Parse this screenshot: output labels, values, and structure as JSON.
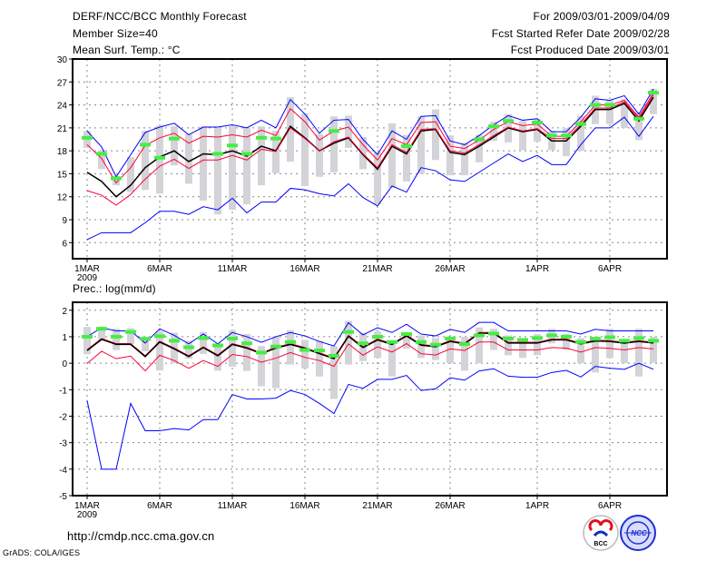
{
  "header": {
    "title": "DERF/NCC/BCC Monthly Forecast",
    "member_size": "Member Size=40",
    "period": "For 2009/03/01-2009/04/09",
    "start_date": "Fcst Started Refer Date 2009/02/28",
    "produced_date": "Fcst Produced Date 2009/03/01"
  },
  "footer": {
    "url": "http://cmdp.ncc.cma.gov.cn",
    "grads": "GrADS: COLA/IGES",
    "logo_bcc": "BCC",
    "logo_ncc": "NCC"
  },
  "colors": {
    "max_min": "#0000ff",
    "spread": "#ff0033",
    "mean": "#000000",
    "bars": "#d3d3d8",
    "obs": "#44ee44"
  },
  "chart_data": [
    {
      "type": "line",
      "title": "Mean Surf. Temp.: °C",
      "ylabel": "°C",
      "ylim": [
        3.9,
        30
      ],
      "yticks": [
        6,
        9,
        12,
        15,
        18,
        21,
        24,
        27,
        30
      ],
      "x_days": 40,
      "xticks": [
        {
          "day": 1,
          "label": "1MAR",
          "sub": "2009"
        },
        {
          "day": 6,
          "label": "6MAR"
        },
        {
          "day": 11,
          "label": "11MAR"
        },
        {
          "day": 16,
          "label": "16MAR"
        },
        {
          "day": 21,
          "label": "21MAR"
        },
        {
          "day": 26,
          "label": "26MAR"
        },
        {
          "day": 32,
          "label": "1APR"
        },
        {
          "day": 37,
          "label": "6APR"
        }
      ],
      "grid": true,
      "series": [
        {
          "name": "max",
          "color": "#0000ff",
          "values": [
            20.6,
            18.5,
            14.6,
            17.5,
            20.4,
            21.1,
            21.6,
            20.1,
            21.1,
            21.1,
            21.4,
            21.0,
            22.0,
            21.0,
            24.7,
            22.8,
            20.3,
            22.0,
            22.1,
            19.5,
            17.5,
            20.6,
            19.5,
            22.5,
            22.6,
            19.3,
            18.8,
            20.0,
            21.4,
            22.6,
            22.0,
            22.2,
            20.5,
            20.5,
            22.4,
            24.8,
            24.6,
            25.2,
            22.8,
            26.1
          ]
        },
        {
          "name": "mean_plus_sd",
          "color": "#ff0033",
          "values": [
            18.8,
            17.0,
            13.8,
            15.8,
            18.7,
            19.7,
            20.3,
            19.0,
            19.9,
            19.8,
            20.1,
            19.8,
            20.7,
            20.0,
            23.5,
            21.8,
            19.4,
            20.6,
            21.1,
            18.8,
            16.8,
            19.6,
            18.8,
            21.7,
            21.8,
            18.6,
            18.3,
            19.4,
            20.8,
            21.8,
            21.3,
            21.5,
            19.9,
            19.9,
            21.8,
            24.0,
            24.0,
            24.6,
            22.4,
            25.6
          ]
        },
        {
          "name": "mean",
          "color": "#000000",
          "values": [
            15.2,
            14.0,
            12.0,
            13.5,
            15.8,
            17.2,
            18.0,
            16.6,
            17.6,
            17.5,
            18.0,
            17.3,
            18.6,
            18.0,
            21.2,
            19.7,
            18.0,
            19.0,
            19.7,
            17.5,
            15.6,
            18.6,
            17.6,
            20.6,
            20.8,
            17.8,
            17.5,
            18.6,
            19.8,
            21.0,
            20.5,
            20.8,
            19.3,
            19.3,
            21.2,
            23.4,
            23.4,
            24.2,
            21.9,
            25.0
          ]
        },
        {
          "name": "mean_minus_sd",
          "color": "#ff0033",
          "values": [
            12.8,
            12.2,
            10.9,
            12.3,
            14.3,
            16.0,
            16.9,
            15.7,
            16.8,
            16.8,
            17.4,
            16.8,
            18.2,
            17.9,
            21.0,
            19.6,
            18.0,
            19.2,
            19.8,
            17.6,
            15.8,
            18.8,
            17.8,
            20.8,
            20.9,
            18.0,
            17.7,
            18.8,
            20.0,
            21.1,
            20.6,
            20.9,
            19.6,
            19.6,
            21.4,
            23.6,
            23.6,
            24.4,
            22.2,
            25.3
          ]
        },
        {
          "name": "min",
          "color": "#0000ff",
          "values": [
            6.4,
            7.3,
            7.3,
            7.3,
            8.6,
            10.1,
            10.1,
            9.7,
            10.7,
            10.3,
            11.8,
            9.9,
            11.3,
            11.3,
            13.1,
            12.9,
            12.4,
            12.1,
            13.7,
            11.9,
            10.8,
            13.4,
            12.6,
            15.8,
            15.4,
            14.2,
            14.0,
            15.2,
            16.4,
            17.6,
            16.6,
            17.4,
            16.2,
            16.2,
            18.8,
            21.0,
            21.0,
            22.4,
            19.9,
            22.5
          ]
        }
      ],
      "bars": [
        [
          18.4,
          20.6
        ],
        [
          15.6,
          18.1
        ],
        [
          13.5,
          14.7
        ],
        [
          12.6,
          17.2
        ],
        [
          12.9,
          20.6
        ],
        [
          12.4,
          21.3
        ],
        [
          16.1,
          21.2
        ],
        [
          13.7,
          20.2
        ],
        [
          11.5,
          21.2
        ],
        [
          9.7,
          21.0
        ],
        [
          10.3,
          21.2
        ],
        [
          11.0,
          21.0
        ],
        [
          13.5,
          21.2
        ],
        [
          15.1,
          20.6
        ],
        [
          16.6,
          25.0
        ],
        [
          13.4,
          22.9
        ],
        [
          14.6,
          20.2
        ],
        [
          15.2,
          22.5
        ],
        [
          18.4,
          22.6
        ],
        [
          15.6,
          19.8
        ],
        [
          11.0,
          17.8
        ],
        [
          13.2,
          21.6
        ],
        [
          14.0,
          20.1
        ],
        [
          15.0,
          22.5
        ],
        [
          16.8,
          23.4
        ],
        [
          14.8,
          20.0
        ],
        [
          14.8,
          19.0
        ],
        [
          16.5,
          20.1
        ],
        [
          19.3,
          21.8
        ],
        [
          19.1,
          22.8
        ],
        [
          18.1,
          21.9
        ],
        [
          19.2,
          22.2
        ],
        [
          18.1,
          20.6
        ],
        [
          17.3,
          21.0
        ],
        [
          18.0,
          22.6
        ],
        [
          21.5,
          25.2
        ],
        [
          21.5,
          24.6
        ],
        [
          21.0,
          24.8
        ],
        [
          19.4,
          23.0
        ],
        [
          22.8,
          26.1
        ]
      ],
      "obs": [
        19.7,
        17.6,
        14.4,
        null,
        18.8,
        17.1,
        19.6,
        null,
        null,
        17.6,
        18.7,
        17.6,
        19.7,
        19.6,
        null,
        null,
        null,
        20.6,
        null,
        null,
        null,
        null,
        18.6,
        null,
        null,
        null,
        null,
        19.5,
        21.2,
        21.9,
        null,
        21.7,
        20.0,
        20.0,
        21.5,
        24.0,
        24.0,
        null,
        22.2,
        25.6
      ]
    },
    {
      "type": "line",
      "title": "Prec.: log(mm/d)",
      "ylabel": "log(mm/d)",
      "ylim": [
        -5,
        2.3
      ],
      "yticks": [
        -5,
        -4,
        -3,
        -2,
        -1,
        0,
        1,
        2
      ],
      "x_days": 40,
      "xticks": [
        {
          "day": 1,
          "label": "1MAR",
          "sub": "2009"
        },
        {
          "day": 6,
          "label": "6MAR"
        },
        {
          "day": 11,
          "label": "11MAR"
        },
        {
          "day": 16,
          "label": "16MAR"
        },
        {
          "day": 21,
          "label": "21MAR"
        },
        {
          "day": 26,
          "label": "26MAR"
        },
        {
          "day": 32,
          "label": "1APR"
        },
        {
          "day": 37,
          "label": "6APR"
        }
      ],
      "grid": true,
      "series": [
        {
          "name": "max",
          "color": "#0000ff",
          "values": [
            1.0,
            1.34,
            1.22,
            1.22,
            0.76,
            1.3,
            1.05,
            0.73,
            1.1,
            0.73,
            1.16,
            1.0,
            0.79,
            1.0,
            1.16,
            1.03,
            0.82,
            0.65,
            1.53,
            1.07,
            1.34,
            1.16,
            1.47,
            1.1,
            1.03,
            1.28,
            1.16,
            1.54,
            1.54,
            1.22,
            1.22,
            1.22,
            1.22,
            1.22,
            1.1,
            1.28,
            1.22,
            1.22,
            1.22,
            1.22
          ]
        },
        {
          "name": "mean_plus_sd",
          "color": "#ff0033",
          "values": [
            0.51,
            0.93,
            0.74,
            0.74,
            0.28,
            0.83,
            0.57,
            0.28,
            0.62,
            0.31,
            0.74,
            0.6,
            0.39,
            0.6,
            0.74,
            0.59,
            0.39,
            0.2,
            1.05,
            0.62,
            0.91,
            0.74,
            1.06,
            0.71,
            0.65,
            0.85,
            0.76,
            1.16,
            1.16,
            0.79,
            0.79,
            0.79,
            0.91,
            0.91,
            0.76,
            0.87,
            0.85,
            0.79,
            0.85,
            0.79
          ]
        },
        {
          "name": "mean",
          "color": "#000000",
          "values": [
            0.48,
            0.9,
            0.71,
            0.71,
            0.25,
            0.8,
            0.54,
            0.25,
            0.59,
            0.28,
            0.71,
            0.57,
            0.36,
            0.57,
            0.71,
            0.56,
            0.36,
            0.17,
            1.02,
            0.59,
            0.88,
            0.71,
            1.03,
            0.68,
            0.62,
            0.82,
            0.73,
            1.13,
            1.13,
            0.76,
            0.76,
            0.76,
            0.88,
            0.88,
            0.73,
            0.84,
            0.82,
            0.76,
            0.82,
            0.76
          ]
        },
        {
          "name": "mean_minus_sd",
          "color": "#ff0033",
          "values": [
            -0.01,
            0.45,
            0.17,
            0.27,
            -0.29,
            0.3,
            0.1,
            -0.19,
            0.1,
            -0.12,
            0.33,
            0.25,
            0.04,
            0.19,
            0.4,
            0.22,
            0.1,
            -0.12,
            0.73,
            0.3,
            0.62,
            0.42,
            0.74,
            0.36,
            0.31,
            0.54,
            0.48,
            0.8,
            0.8,
            0.5,
            0.5,
            0.5,
            0.59,
            0.57,
            0.42,
            0.59,
            0.56,
            0.5,
            0.59,
            0.54
          ]
        },
        {
          "name": "min",
          "color": "#0000ff",
          "values": [
            -1.41,
            -4.0,
            -4.0,
            -1.52,
            -2.55,
            -2.55,
            -2.47,
            -2.52,
            -2.13,
            -2.13,
            -1.18,
            -1.35,
            -1.35,
            -1.32,
            -1.03,
            -1.18,
            -1.52,
            -1.9,
            -0.8,
            -0.95,
            -0.61,
            -0.61,
            -0.46,
            -1.03,
            -0.97,
            -0.55,
            -0.64,
            -0.29,
            -0.21,
            -0.49,
            -0.53,
            -0.53,
            -0.35,
            -0.27,
            -0.52,
            -0.12,
            -0.19,
            -0.23,
            0.0,
            -0.23
          ]
        }
      ],
      "bars": [
        [
          0.34,
          1.37
        ],
        [
          0.85,
          1.38
        ],
        [
          0.5,
          1.3
        ],
        [
          0.72,
          1.32
        ],
        [
          0.45,
          1.0
        ],
        [
          -0.27,
          1.2
        ],
        [
          0.0,
          1.15
        ],
        [
          0.17,
          0.85
        ],
        [
          0.35,
          1.18
        ],
        [
          -0.28,
          0.75
        ],
        [
          -0.13,
          1.25
        ],
        [
          -0.29,
          1.1
        ],
        [
          -0.87,
          0.65
        ],
        [
          -0.94,
          1.0
        ],
        [
          -0.05,
          1.25
        ],
        [
          -0.2,
          0.88
        ],
        [
          -0.5,
          0.85
        ],
        [
          -1.35,
          0.65
        ],
        [
          -0.05,
          1.6
        ],
        [
          0.08,
          1.15
        ],
        [
          0.2,
          1.2
        ],
        [
          -0.5,
          0.8
        ],
        [
          0.55,
          1.1
        ],
        [
          0.2,
          1.05
        ],
        [
          0.12,
          0.95
        ],
        [
          0.0,
          1.0
        ],
        [
          -0.28,
          1.0
        ],
        [
          0.0,
          1.35
        ],
        [
          0.5,
          1.3
        ],
        [
          0.3,
          1.05
        ],
        [
          0.2,
          0.95
        ],
        [
          0.3,
          1.1
        ],
        [
          0.75,
          1.3
        ],
        [
          0.5,
          1.1
        ],
        [
          0.0,
          0.95
        ],
        [
          -0.35,
          1.0
        ],
        [
          0.2,
          1.3
        ],
        [
          0.0,
          0.9
        ],
        [
          -0.5,
          1.3
        ],
        [
          0.02,
          1.0
        ]
      ],
      "obs": [
        1.0,
        1.3,
        1.0,
        1.18,
        0.92,
        1.02,
        0.85,
        0.6,
        0.95,
        0.67,
        0.93,
        0.75,
        0.4,
        0.63,
        0.8,
        0.5,
        0.48,
        0.28,
        1.18,
        0.75,
        1.0,
        0.8,
        1.1,
        0.8,
        0.7,
        0.93,
        0.72,
        1.05,
        1.12,
        0.93,
        0.88,
        0.95,
        1.05,
        1.0,
        0.8,
        0.92,
        0.98,
        0.85,
        0.95,
        0.85
      ]
    }
  ]
}
